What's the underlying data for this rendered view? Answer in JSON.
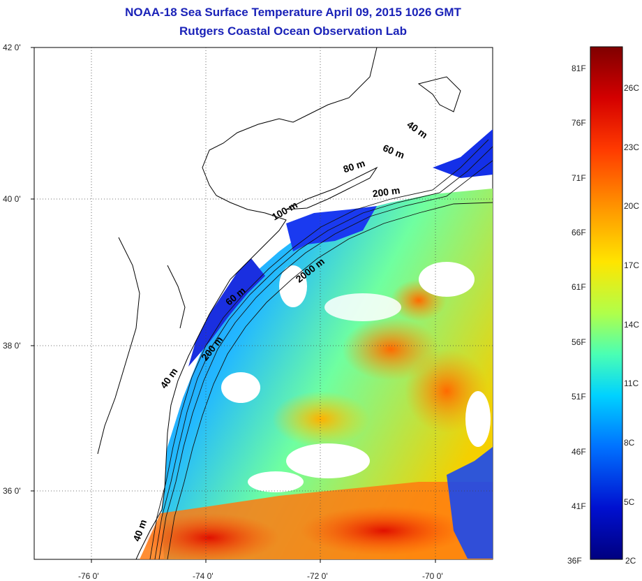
{
  "title": {
    "line1": "NOAA-18 Sea Surface Temperature April 09, 2015 1026 GMT",
    "line2": "Rutgers Coastal Ocean Observation Lab"
  },
  "axes": {
    "lat_labels": [
      "42 0'",
      "40 0'",
      "38 0'",
      "36 0'"
    ],
    "lon_labels": [
      "-76 0'",
      "-74 0'",
      "-72 0'",
      "-70 0'"
    ],
    "lon_range": [
      -77.0,
      -69.0
    ],
    "lat_range": [
      35.0,
      42.0
    ],
    "grid": "dotted"
  },
  "contour_labels": [
    {
      "text": "40 m",
      "lon": -70.35,
      "lat": 40.85,
      "angle": 35
    },
    {
      "text": "60 m",
      "lon": -70.75,
      "lat": 40.55,
      "angle": 22
    },
    {
      "text": "80 m",
      "lon": -71.4,
      "lat": 40.35,
      "angle": -18
    },
    {
      "text": "200 m",
      "lon": -70.85,
      "lat": 40.0,
      "angle": -8
    },
    {
      "text": "100 m",
      "lon": -72.6,
      "lat": 39.75,
      "angle": -30
    },
    {
      "text": "2000 m",
      "lon": -72.15,
      "lat": 38.95,
      "angle": -38
    },
    {
      "text": "60 m",
      "lon": -73.45,
      "lat": 38.6,
      "angle": -40
    },
    {
      "text": "200 m",
      "lon": -73.85,
      "lat": 37.9,
      "angle": -52
    },
    {
      "text": "40 m",
      "lon": -74.6,
      "lat": 37.5,
      "angle": -55
    },
    {
      "text": "40 m",
      "lon": -75.1,
      "lat": 35.45,
      "angle": -70
    }
  ],
  "colorbar": {
    "fahrenheit_labels": [
      "81F",
      "76F",
      "71F",
      "66F",
      "61F",
      "56F",
      "51F",
      "46F",
      "41F",
      "36F"
    ],
    "celsius_labels": [
      "26C",
      "23C",
      "20C",
      "17C",
      "14C",
      "11C",
      "8C",
      "5C",
      "2C"
    ],
    "colors": [
      "#7f0000",
      "#d40000",
      "#ff3a00",
      "#ff9a00",
      "#ffe500",
      "#b0ff4a",
      "#4affb4",
      "#00d2ff",
      "#0072ff",
      "#0010d0",
      "#00007f"
    ]
  },
  "legend_hidden_icon": "none"
}
